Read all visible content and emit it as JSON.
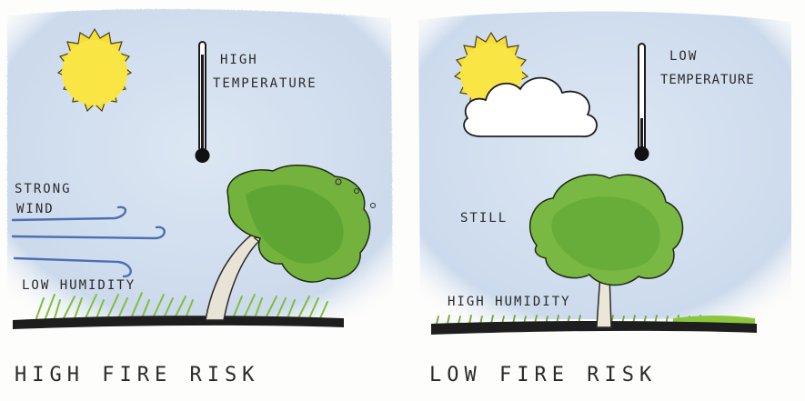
{
  "left": {
    "temperature_line1": "HIGH",
    "temperature_line2": "TEMPERATURE",
    "wind_line1": "STRONG",
    "wind_line2": "WIND",
    "humidity": "LOW HUMIDITY",
    "caption": "HIGH FIRE RISK"
  },
  "right": {
    "temperature_line1": "LOW",
    "temperature_line2": "TEMPERATURE",
    "wind": "STILL",
    "humidity": "HIGH HUMIDITY",
    "caption": "LOW FIRE RISK"
  },
  "colors": {
    "sky": "#c9d8ec",
    "sun": "#f7e13a",
    "tree_green": "#6fae3a",
    "grass": "#8cc63f",
    "ground": "#222222",
    "wind": "#4d6fb3"
  }
}
